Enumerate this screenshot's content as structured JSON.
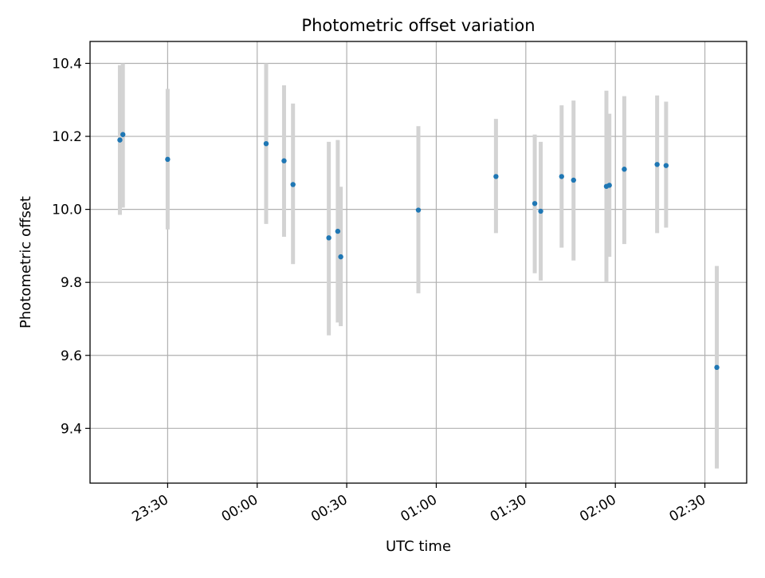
{
  "chart_data": {
    "type": "scatter",
    "title": "Photometric offset variation",
    "xlabel": "UTC time",
    "ylabel": "Photometric offset",
    "x_axis_type": "time",
    "xlim": [
      "23:04",
      "02:44"
    ],
    "ylim": [
      9.25,
      10.46
    ],
    "x_ticks": [
      "23:30",
      "00:00",
      "00:30",
      "01:00",
      "01:30",
      "02:00",
      "02:30"
    ],
    "y_ticks": [
      "9.4",
      "9.6",
      "9.8",
      "10.0",
      "10.2",
      "10.4"
    ],
    "grid": true,
    "errorbar_color": "#d3d3d3",
    "marker_color": "#1f77b4",
    "series": [
      {
        "points": [
          {
            "x": "23:14",
            "y": 10.19,
            "y_low": 9.985,
            "y_high": 10.395
          },
          {
            "x": "23:15",
            "y": 10.205,
            "y_low": 10.005,
            "y_high": 10.4
          },
          {
            "x": "23:30",
            "y": 10.137,
            "y_low": 9.945,
            "y_high": 10.33
          },
          {
            "x": "00:03",
            "y": 10.18,
            "y_low": 9.96,
            "y_high": 10.4
          },
          {
            "x": "00:09",
            "y": 10.133,
            "y_low": 9.925,
            "y_high": 10.34
          },
          {
            "x": "00:12",
            "y": 10.068,
            "y_low": 9.85,
            "y_high": 10.29
          },
          {
            "x": "00:24",
            "y": 9.922,
            "y_low": 9.655,
            "y_high": 10.185
          },
          {
            "x": "00:27",
            "y": 9.94,
            "y_low": 9.69,
            "y_high": 10.19
          },
          {
            "x": "00:28",
            "y": 9.87,
            "y_low": 9.68,
            "y_high": 10.062
          },
          {
            "x": "00:54",
            "y": 9.998,
            "y_low": 9.77,
            "y_high": 10.228
          },
          {
            "x": "01:20",
            "y": 10.09,
            "y_low": 9.935,
            "y_high": 10.248
          },
          {
            "x": "01:33",
            "y": 10.016,
            "y_low": 9.825,
            "y_high": 10.205
          },
          {
            "x": "01:35",
            "y": 9.995,
            "y_low": 9.805,
            "y_high": 10.185
          },
          {
            "x": "01:42",
            "y": 10.09,
            "y_low": 9.895,
            "y_high": 10.285
          },
          {
            "x": "01:46",
            "y": 10.08,
            "y_low": 9.86,
            "y_high": 10.298
          },
          {
            "x": "01:57",
            "y": 10.063,
            "y_low": 9.8,
            "y_high": 10.325
          },
          {
            "x": "01:58",
            "y": 10.066,
            "y_low": 9.87,
            "y_high": 10.262
          },
          {
            "x": "02:03",
            "y": 10.11,
            "y_low": 9.905,
            "y_high": 10.31
          },
          {
            "x": "02:14",
            "y": 10.123,
            "y_low": 9.935,
            "y_high": 10.312
          },
          {
            "x": "02:17",
            "y": 10.12,
            "y_low": 9.95,
            "y_high": 10.295
          },
          {
            "x": "02:34",
            "y": 9.567,
            "y_low": 9.29,
            "y_high": 9.845
          }
        ]
      }
    ]
  }
}
